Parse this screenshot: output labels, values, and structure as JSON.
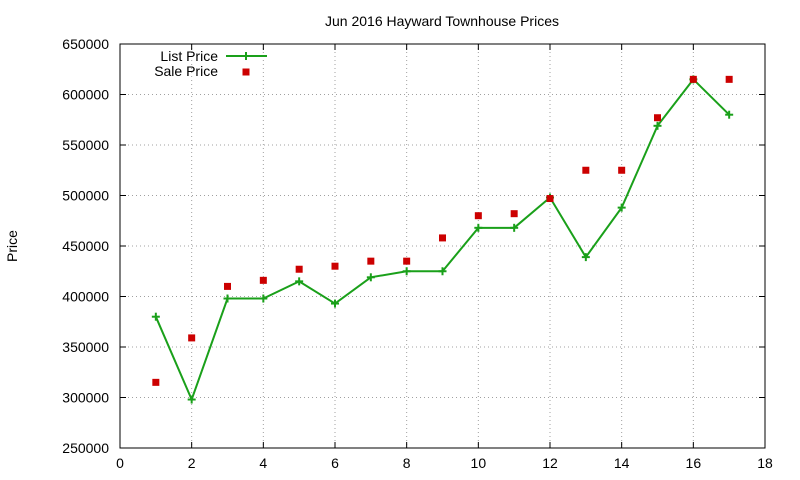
{
  "chart_data": {
    "type": "line",
    "title": "Jun 2016 Hayward Townhouse Prices",
    "xlabel": "",
    "ylabel": "Price",
    "xlim": [
      0,
      18
    ],
    "ylim": [
      250000,
      650000
    ],
    "xticks": [
      0,
      2,
      4,
      6,
      8,
      10,
      12,
      14,
      16,
      18
    ],
    "yticks": [
      250000,
      300000,
      350000,
      400000,
      450000,
      500000,
      550000,
      600000,
      650000
    ],
    "grid": true,
    "legend": "top-left",
    "series": [
      {
        "name": "List Price",
        "style": "line+cross",
        "color": "#1aa01a",
        "x": [
          1,
          2,
          3,
          4,
          5,
          6,
          7,
          8,
          9,
          10,
          11,
          12,
          13,
          14,
          15,
          16,
          17
        ],
        "values": [
          380000,
          298000,
          398000,
          398000,
          415000,
          393000,
          419000,
          425000,
          425000,
          468000,
          468000,
          498000,
          439000,
          488000,
          569000,
          615000,
          580000
        ]
      },
      {
        "name": "Sale Price",
        "style": "square-points",
        "color": "#cc0000",
        "x": [
          1,
          2,
          3,
          4,
          5,
          6,
          7,
          8,
          9,
          10,
          11,
          12,
          13,
          14,
          15,
          16,
          17
        ],
        "values": [
          315000,
          359000,
          410000,
          416000,
          427000,
          430000,
          435000,
          435000,
          458000,
          480000,
          482000,
          497000,
          525000,
          525000,
          577000,
          615000,
          615000
        ]
      }
    ]
  }
}
